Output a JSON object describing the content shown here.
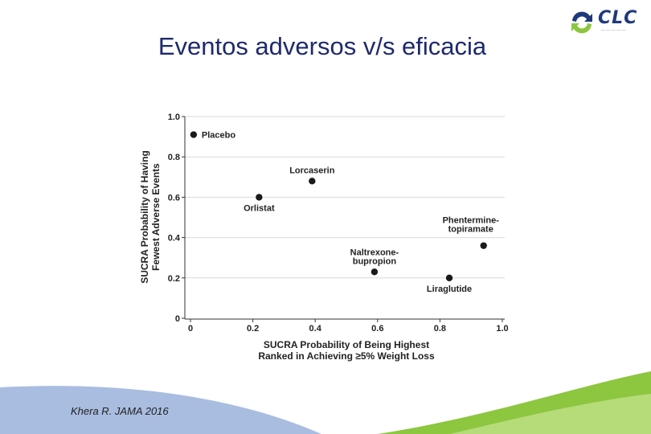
{
  "slide": {
    "title": "Eventos adversos v/s eficacia",
    "citation": "Khera R. JAMA 2016"
  },
  "logo": {
    "text": "CLC",
    "icon": "recycle-arrows-logo-icon",
    "colors": {
      "primary": "#1f3a7a",
      "accent": "#8cc63f"
    }
  },
  "colors": {
    "title": "#1f2a6b",
    "points": "#1a1a1a",
    "grid": "#d9d9d9",
    "deco_blue": "#a9bde0",
    "deco_green": "#8dc63f"
  },
  "chart_data": {
    "type": "scatter",
    "xlabel_lines": [
      "SUCRA Probability of Being Highest",
      "Ranked in Achieving ≥5% Weight Loss"
    ],
    "ylabel_lines": [
      "SUCRA Probability of Having",
      "Fewest Adverse Events"
    ],
    "xlim": [
      0,
      1.0
    ],
    "ylim": [
      0,
      1.0
    ],
    "x_ticks": [
      0,
      0.2,
      0.4,
      0.6,
      0.8,
      1.0
    ],
    "x_tick_labels": [
      "0",
      "0.2",
      "0.4",
      "0.6",
      "0.8",
      "1.0"
    ],
    "y_ticks": [
      0,
      0.2,
      0.4,
      0.6,
      0.8,
      1.0
    ],
    "y_tick_labels": [
      "0",
      "0.2",
      "0.4",
      "0.6",
      "0.8",
      "1.0"
    ],
    "grid": "horizontal",
    "points": [
      {
        "label": [
          "Placebo"
        ],
        "x": 0.01,
        "y": 0.91,
        "label_side": "right"
      },
      {
        "label": [
          "Lorcaserin"
        ],
        "x": 0.39,
        "y": 0.68,
        "label_side": "above"
      },
      {
        "label": [
          "Orlistat"
        ],
        "x": 0.22,
        "y": 0.6,
        "label_side": "below"
      },
      {
        "label": [
          "Phentermine-",
          "topiramate"
        ],
        "x": 0.94,
        "y": 0.36,
        "label_side": "above-left"
      },
      {
        "label": [
          "Naltrexone-",
          "bupropion"
        ],
        "x": 0.59,
        "y": 0.23,
        "label_side": "above"
      },
      {
        "label": [
          "Liraglutide"
        ],
        "x": 0.83,
        "y": 0.2,
        "label_side": "below"
      }
    ]
  }
}
